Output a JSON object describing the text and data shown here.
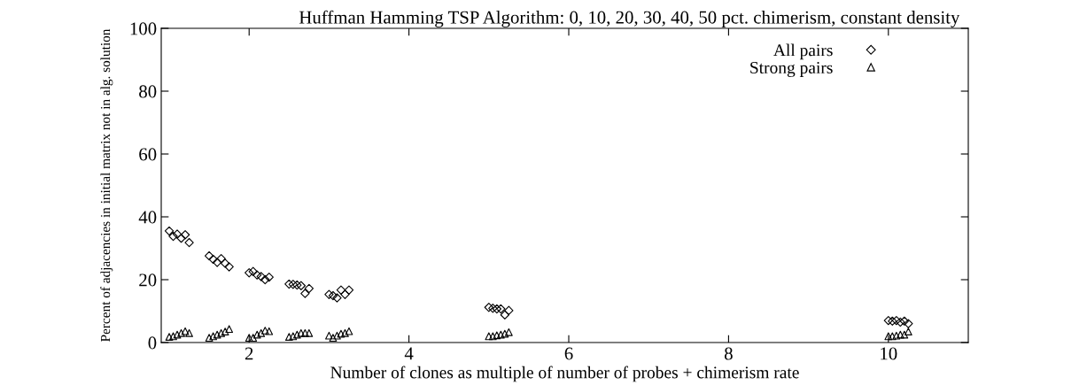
{
  "chart_data": {
    "type": "scatter",
    "title": "Huffman Hamming TSP Algorithm: 0, 10, 20, 30, 40, 50 pct. chimerism, constant density",
    "xlabel": "Number of clones as multiple of number of probes + chimerism rate",
    "ylabel": "Percent of adjacencies in initial matrix not in alg. solution",
    "xlim": [
      0.9,
      11
    ],
    "ylim": [
      0,
      100
    ],
    "xticks": [
      2,
      4,
      6,
      8,
      10
    ],
    "yticks": [
      0,
      20,
      40,
      60,
      80,
      100
    ],
    "grid": false,
    "legend": "top right",
    "series": [
      {
        "name": "All pairs",
        "color": "#000000",
        "marker": "diamond",
        "x": [
          1.0,
          1.05,
          1.1,
          1.15,
          1.2,
          1.25,
          1.5,
          1.55,
          1.6,
          1.65,
          1.7,
          1.75,
          2.0,
          2.05,
          2.1,
          2.15,
          2.2,
          2.25,
          2.5,
          2.55,
          2.6,
          2.65,
          2.7,
          2.75,
          3.0,
          3.05,
          3.1,
          3.15,
          3.2,
          3.25,
          5.0,
          5.05,
          5.1,
          5.15,
          5.2,
          5.25,
          10.0,
          10.05,
          10.1,
          10.15,
          10.2,
          10.25
        ],
        "values": [
          35.5,
          33.8,
          34.5,
          33.2,
          34.3,
          31.8,
          27.6,
          26.5,
          25.5,
          26.7,
          25.2,
          24.1,
          22.2,
          22.6,
          21.5,
          21.0,
          20.0,
          20.8,
          18.6,
          18.5,
          18.3,
          18.1,
          15.6,
          17.2,
          15.3,
          14.9,
          14.2,
          16.7,
          15.3,
          16.7,
          11.2,
          10.9,
          10.7,
          10.7,
          8.8,
          10.2,
          7.0,
          6.8,
          7.0,
          6.5,
          6.8,
          6.0
        ]
      },
      {
        "name": "Strong pairs",
        "color": "#000000",
        "marker": "triangle",
        "x": [
          1.0,
          1.05,
          1.1,
          1.15,
          1.2,
          1.25,
          1.5,
          1.55,
          1.6,
          1.65,
          1.7,
          1.75,
          2.0,
          2.05,
          2.1,
          2.15,
          2.2,
          2.25,
          2.5,
          2.55,
          2.6,
          2.65,
          2.7,
          2.75,
          3.0,
          3.05,
          3.1,
          3.15,
          3.2,
          3.25,
          5.0,
          5.05,
          5.1,
          5.15,
          5.2,
          5.25,
          10.0,
          10.05,
          10.1,
          10.15,
          10.2,
          10.25
        ],
        "values": [
          1.8,
          2.0,
          2.5,
          3.0,
          3.6,
          3.0,
          1.5,
          2.0,
          2.5,
          3.0,
          3.5,
          4.3,
          1.5,
          1.5,
          2.5,
          3.0,
          3.8,
          3.6,
          1.8,
          2.0,
          2.5,
          3.0,
          3.0,
          3.0,
          2.2,
          1.5,
          2.2,
          2.8,
          3.0,
          3.6,
          2.0,
          2.0,
          2.3,
          2.5,
          2.8,
          3.3,
          2.0,
          2.0,
          2.2,
          2.5,
          2.5,
          3.5
        ]
      }
    ]
  }
}
